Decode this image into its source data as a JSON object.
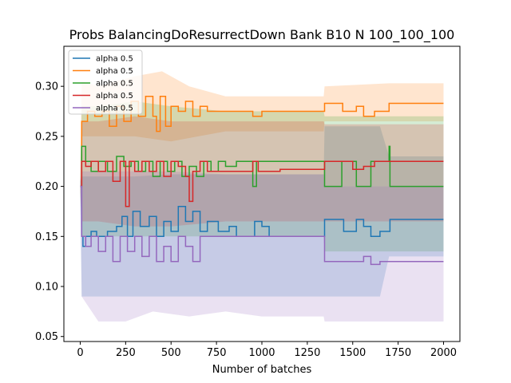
{
  "chart_data": {
    "type": "line",
    "title": "Probs BalancingDoResurrectDown Bank B10 N 100_100_100",
    "xlabel": "Number of batches",
    "ylabel": "",
    "xlim": [
      -90,
      2090
    ],
    "ylim": [
      0.045,
      0.34
    ],
    "xticks": [
      0,
      250,
      500,
      750,
      1000,
      1250,
      1500,
      1750,
      2000
    ],
    "yticks": [
      0.05,
      0.1,
      0.15,
      0.2,
      0.25,
      0.3
    ],
    "ytick_labels": [
      "0.05",
      "0.10",
      "0.15",
      "0.20",
      "0.25",
      "0.30"
    ],
    "grid": false,
    "legend_position": "upper-left",
    "series": [
      {
        "name": "alpha 0.5",
        "color": "#1f77b4",
        "points": [
          [
            0,
            0.2
          ],
          [
            8,
            0.15
          ],
          [
            15,
            0.14
          ],
          [
            30,
            0.15
          ],
          [
            60,
            0.155
          ],
          [
            90,
            0.15
          ],
          [
            150,
            0.155
          ],
          [
            200,
            0.16
          ],
          [
            230,
            0.17
          ],
          [
            260,
            0.15
          ],
          [
            290,
            0.175
          ],
          [
            330,
            0.16
          ],
          [
            380,
            0.17
          ],
          [
            420,
            0.15
          ],
          [
            460,
            0.165
          ],
          [
            500,
            0.155
          ],
          [
            540,
            0.18
          ],
          [
            580,
            0.165
          ],
          [
            620,
            0.175
          ],
          [
            660,
            0.155
          ],
          [
            700,
            0.165
          ],
          [
            760,
            0.155
          ],
          [
            820,
            0.16
          ],
          [
            860,
            0.15
          ],
          [
            920,
            0.15
          ],
          [
            960,
            0.165
          ],
          [
            1000,
            0.16
          ],
          [
            1040,
            0.15
          ],
          [
            1100,
            0.15
          ],
          [
            1200,
            0.15
          ],
          [
            1340,
            0.15
          ],
          [
            1345,
            0.167
          ],
          [
            1420,
            0.167
          ],
          [
            1450,
            0.155
          ],
          [
            1520,
            0.167
          ],
          [
            1560,
            0.16
          ],
          [
            1600,
            0.15
          ],
          [
            1650,
            0.155
          ],
          [
            1700,
            0.155
          ],
          [
            1705,
            0.167
          ],
          [
            2000,
            0.167
          ]
        ],
        "band_upper": [
          [
            0,
            0.205
          ],
          [
            8,
            0.21
          ],
          [
            100,
            0.21
          ],
          [
            300,
            0.21
          ],
          [
            500,
            0.212
          ],
          [
            800,
            0.212
          ],
          [
            1000,
            0.212
          ],
          [
            1340,
            0.212
          ],
          [
            1345,
            0.26
          ],
          [
            1650,
            0.26
          ],
          [
            1700,
            0.23
          ],
          [
            2000,
            0.23
          ]
        ],
        "band_lower": [
          [
            0,
            0.195
          ],
          [
            8,
            0.09
          ],
          [
            100,
            0.09
          ],
          [
            300,
            0.09
          ],
          [
            500,
            0.09
          ],
          [
            800,
            0.09
          ],
          [
            1000,
            0.09
          ],
          [
            1340,
            0.09
          ],
          [
            1345,
            0.09
          ],
          [
            1650,
            0.09
          ],
          [
            1700,
            0.13
          ],
          [
            2000,
            0.13
          ]
        ]
      },
      {
        "name": "alpha 0.5",
        "color": "#ff7f0e",
        "points": [
          [
            0,
            0.2
          ],
          [
            8,
            0.265
          ],
          [
            40,
            0.275
          ],
          [
            80,
            0.27
          ],
          [
            120,
            0.275
          ],
          [
            160,
            0.26
          ],
          [
            200,
            0.28
          ],
          [
            240,
            0.265
          ],
          [
            280,
            0.285
          ],
          [
            320,
            0.27
          ],
          [
            360,
            0.29
          ],
          [
            400,
            0.27
          ],
          [
            420,
            0.255
          ],
          [
            440,
            0.29
          ],
          [
            470,
            0.26
          ],
          [
            500,
            0.28
          ],
          [
            540,
            0.275
          ],
          [
            580,
            0.285
          ],
          [
            620,
            0.27
          ],
          [
            660,
            0.28
          ],
          [
            700,
            0.275
          ],
          [
            760,
            0.275
          ],
          [
            800,
            0.275
          ],
          [
            900,
            0.275
          ],
          [
            950,
            0.27
          ],
          [
            1000,
            0.275
          ],
          [
            1100,
            0.275
          ],
          [
            1200,
            0.275
          ],
          [
            1340,
            0.275
          ],
          [
            1345,
            0.283
          ],
          [
            1440,
            0.283
          ],
          [
            1445,
            0.275
          ],
          [
            1520,
            0.28
          ],
          [
            1560,
            0.27
          ],
          [
            1620,
            0.275
          ],
          [
            1700,
            0.283
          ],
          [
            2000,
            0.283
          ]
        ],
        "band_upper": [
          [
            0,
            0.205
          ],
          [
            8,
            0.305
          ],
          [
            100,
            0.3
          ],
          [
            300,
            0.31
          ],
          [
            450,
            0.315
          ],
          [
            600,
            0.3
          ],
          [
            800,
            0.29
          ],
          [
            1000,
            0.29
          ],
          [
            1200,
            0.29
          ],
          [
            1340,
            0.29
          ],
          [
            1345,
            0.3
          ],
          [
            1700,
            0.303
          ],
          [
            2000,
            0.303
          ]
        ],
        "band_lower": [
          [
            0,
            0.195
          ],
          [
            8,
            0.25
          ],
          [
            100,
            0.25
          ],
          [
            300,
            0.25
          ],
          [
            500,
            0.245
          ],
          [
            800,
            0.255
          ],
          [
            1000,
            0.255
          ],
          [
            1340,
            0.255
          ],
          [
            1345,
            0.265
          ],
          [
            1700,
            0.265
          ],
          [
            2000,
            0.265
          ]
        ]
      },
      {
        "name": "alpha 0.5",
        "color": "#2ca02c",
        "points": [
          [
            0,
            0.2
          ],
          [
            8,
            0.24
          ],
          [
            30,
            0.225
          ],
          [
            60,
            0.215
          ],
          [
            100,
            0.225
          ],
          [
            150,
            0.215
          ],
          [
            200,
            0.23
          ],
          [
            240,
            0.22
          ],
          [
            280,
            0.225
          ],
          [
            320,
            0.215
          ],
          [
            360,
            0.225
          ],
          [
            400,
            0.21
          ],
          [
            440,
            0.225
          ],
          [
            480,
            0.215
          ],
          [
            520,
            0.225
          ],
          [
            560,
            0.21
          ],
          [
            600,
            0.22
          ],
          [
            640,
            0.21
          ],
          [
            680,
            0.225
          ],
          [
            720,
            0.215
          ],
          [
            760,
            0.225
          ],
          [
            800,
            0.22
          ],
          [
            860,
            0.225
          ],
          [
            920,
            0.225
          ],
          [
            950,
            0.2
          ],
          [
            970,
            0.225
          ],
          [
            1000,
            0.225
          ],
          [
            1050,
            0.225
          ],
          [
            1100,
            0.225
          ],
          [
            1200,
            0.225
          ],
          [
            1340,
            0.225
          ],
          [
            1345,
            0.2
          ],
          [
            1400,
            0.2
          ],
          [
            1440,
            0.225
          ],
          [
            1520,
            0.2
          ],
          [
            1560,
            0.2
          ],
          [
            1600,
            0.225
          ],
          [
            1650,
            0.225
          ],
          [
            1700,
            0.24
          ],
          [
            1705,
            0.2
          ],
          [
            2000,
            0.2
          ]
        ],
        "band_upper": [
          [
            0,
            0.205
          ],
          [
            8,
            0.28
          ],
          [
            100,
            0.28
          ],
          [
            300,
            0.285
          ],
          [
            500,
            0.28
          ],
          [
            800,
            0.275
          ],
          [
            1000,
            0.275
          ],
          [
            1340,
            0.275
          ],
          [
            1345,
            0.27
          ],
          [
            1700,
            0.27
          ],
          [
            2000,
            0.27
          ]
        ],
        "band_lower": [
          [
            0,
            0.195
          ],
          [
            8,
            0.15
          ],
          [
            100,
            0.15
          ],
          [
            300,
            0.15
          ],
          [
            500,
            0.15
          ],
          [
            800,
            0.15
          ],
          [
            1000,
            0.15
          ],
          [
            1340,
            0.15
          ],
          [
            1345,
            0.135
          ],
          [
            1700,
            0.135
          ],
          [
            2000,
            0.135
          ]
        ]
      },
      {
        "name": "alpha 0.5",
        "color": "#d62728",
        "points": [
          [
            0,
            0.2
          ],
          [
            8,
            0.225
          ],
          [
            30,
            0.22
          ],
          [
            60,
            0.225
          ],
          [
            100,
            0.215
          ],
          [
            140,
            0.225
          ],
          [
            180,
            0.205
          ],
          [
            220,
            0.225
          ],
          [
            250,
            0.18
          ],
          [
            270,
            0.225
          ],
          [
            300,
            0.215
          ],
          [
            340,
            0.225
          ],
          [
            380,
            0.215
          ],
          [
            420,
            0.225
          ],
          [
            460,
            0.21
          ],
          [
            500,
            0.225
          ],
          [
            540,
            0.22
          ],
          [
            580,
            0.21
          ],
          [
            600,
            0.185
          ],
          [
            620,
            0.215
          ],
          [
            660,
            0.225
          ],
          [
            700,
            0.215
          ],
          [
            760,
            0.215
          ],
          [
            800,
            0.215
          ],
          [
            860,
            0.215
          ],
          [
            920,
            0.215
          ],
          [
            950,
            0.225
          ],
          [
            980,
            0.215
          ],
          [
            1040,
            0.215
          ],
          [
            1100,
            0.217
          ],
          [
            1200,
            0.217
          ],
          [
            1340,
            0.217
          ],
          [
            1345,
            0.225
          ],
          [
            1440,
            0.225
          ],
          [
            1500,
            0.217
          ],
          [
            1560,
            0.22
          ],
          [
            1620,
            0.225
          ],
          [
            1700,
            0.225
          ],
          [
            2000,
            0.225
          ]
        ],
        "band_upper": [
          [
            0,
            0.205
          ],
          [
            8,
            0.265
          ],
          [
            100,
            0.265
          ],
          [
            300,
            0.27
          ],
          [
            500,
            0.265
          ],
          [
            800,
            0.265
          ],
          [
            1000,
            0.265
          ],
          [
            1340,
            0.265
          ],
          [
            1345,
            0.262
          ],
          [
            1700,
            0.262
          ],
          [
            2000,
            0.262
          ]
        ],
        "band_lower": [
          [
            0,
            0.195
          ],
          [
            8,
            0.165
          ],
          [
            100,
            0.165
          ],
          [
            300,
            0.16
          ],
          [
            500,
            0.16
          ],
          [
            800,
            0.165
          ],
          [
            1000,
            0.165
          ],
          [
            1340,
            0.165
          ],
          [
            1345,
            0.165
          ],
          [
            1700,
            0.165
          ],
          [
            2000,
            0.165
          ]
        ]
      },
      {
        "name": "alpha 0.5",
        "color": "#9467bd",
        "points": [
          [
            0,
            0.2
          ],
          [
            8,
            0.15
          ],
          [
            30,
            0.14
          ],
          [
            60,
            0.15
          ],
          [
            100,
            0.135
          ],
          [
            140,
            0.15
          ],
          [
            180,
            0.125
          ],
          [
            220,
            0.15
          ],
          [
            260,
            0.135
          ],
          [
            300,
            0.15
          ],
          [
            340,
            0.13
          ],
          [
            380,
            0.15
          ],
          [
            420,
            0.125
          ],
          [
            460,
            0.14
          ],
          [
            500,
            0.125
          ],
          [
            540,
            0.15
          ],
          [
            580,
            0.14
          ],
          [
            620,
            0.125
          ],
          [
            660,
            0.15
          ],
          [
            700,
            0.15
          ],
          [
            760,
            0.15
          ],
          [
            800,
            0.15
          ],
          [
            900,
            0.15
          ],
          [
            1000,
            0.15
          ],
          [
            1100,
            0.15
          ],
          [
            1200,
            0.15
          ],
          [
            1340,
            0.15
          ],
          [
            1345,
            0.125
          ],
          [
            1500,
            0.125
          ],
          [
            1560,
            0.13
          ],
          [
            1600,
            0.122
          ],
          [
            1650,
            0.125
          ],
          [
            1700,
            0.125
          ],
          [
            2000,
            0.125
          ]
        ],
        "band_upper": [
          [
            0,
            0.205
          ],
          [
            8,
            0.215
          ],
          [
            100,
            0.215
          ],
          [
            300,
            0.215
          ],
          [
            500,
            0.215
          ],
          [
            800,
            0.212
          ],
          [
            1000,
            0.212
          ],
          [
            1340,
            0.212
          ],
          [
            1345,
            0.2
          ],
          [
            1700,
            0.2
          ],
          [
            2000,
            0.2
          ]
        ],
        "band_lower": [
          [
            0,
            0.195
          ],
          [
            8,
            0.09
          ],
          [
            100,
            0.065
          ],
          [
            250,
            0.065
          ],
          [
            400,
            0.075
          ],
          [
            600,
            0.07
          ],
          [
            800,
            0.075
          ],
          [
            1000,
            0.07
          ],
          [
            1340,
            0.07
          ],
          [
            1345,
            0.065
          ],
          [
            1700,
            0.065
          ],
          [
            2000,
            0.065
          ]
        ]
      }
    ]
  }
}
